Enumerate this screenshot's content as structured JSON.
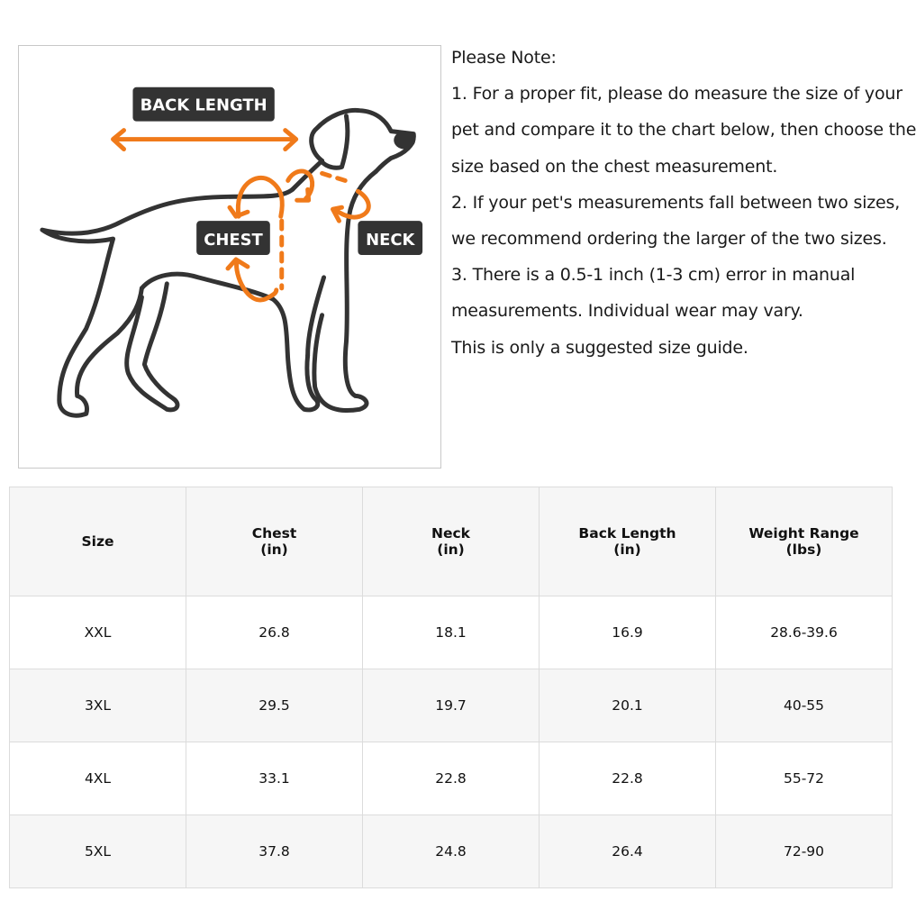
{
  "figure": {
    "labels": {
      "back_length": "BACK LENGTH",
      "chest": "CHEST",
      "neck": "NECK"
    },
    "colors": {
      "accent": "#f07a1a",
      "outline": "#333333",
      "label_bg": "#333333"
    }
  },
  "notes": {
    "title": "Please Note:",
    "lines": [
      "1. For a proper fit, please do measure the size of your",
      "pet and compare it to the chart below, then choose the",
      "size based on the chest measurement.",
      "2. If your pet's measurements fall between two sizes,",
      "we recommend ordering the larger of the two sizes.",
      "3. There is a 0.5-1 inch (1-3 cm) error in manual",
      "measurements. Individual wear may vary.",
      "This is only a suggested size guide."
    ]
  },
  "table": {
    "headers": [
      {
        "name": "Size",
        "unit": ""
      },
      {
        "name": "Chest",
        "unit": "(in)"
      },
      {
        "name": "Neck",
        "unit": "(in)"
      },
      {
        "name": "Back Length",
        "unit": "(in)"
      },
      {
        "name": "Weight Range",
        "unit": "(lbs)"
      }
    ],
    "rows": [
      [
        "XXL",
        "26.8",
        "18.1",
        "16.9",
        "28.6-39.6"
      ],
      [
        "3XL",
        "29.5",
        "19.7",
        "20.1",
        "40-55"
      ],
      [
        "4XL",
        "33.1",
        "22.8",
        "22.8",
        "55-72"
      ],
      [
        "5XL",
        "37.8",
        "24.8",
        "26.4",
        "72-90"
      ]
    ]
  }
}
